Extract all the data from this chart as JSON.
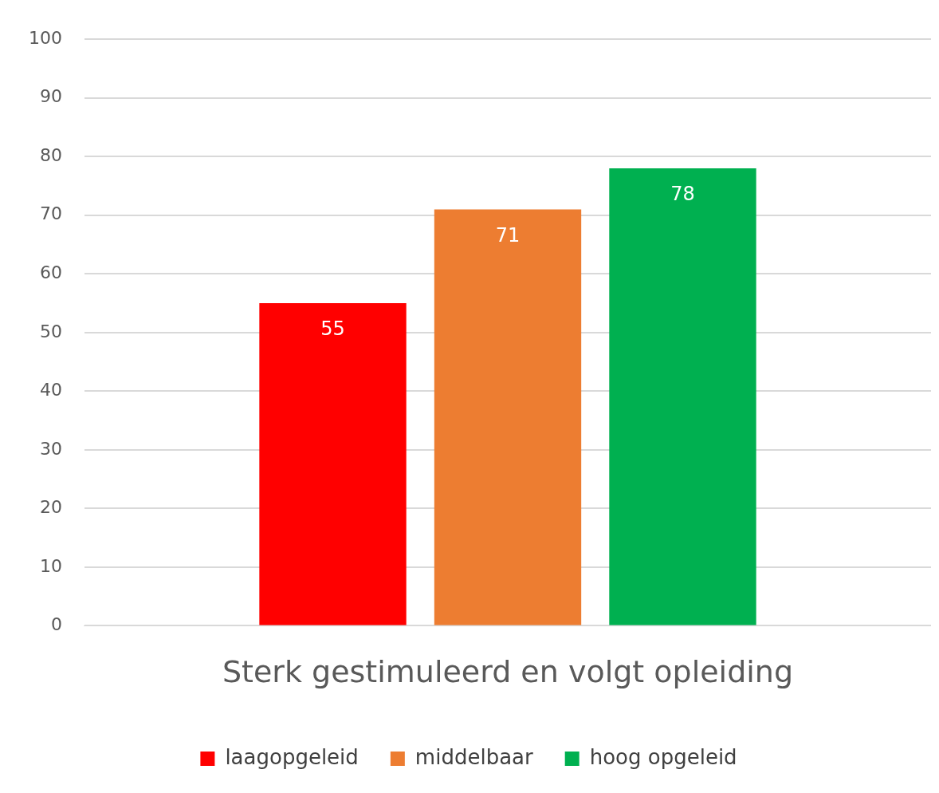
{
  "chart_data": {
    "type": "bar",
    "categories": [
      "Sterk gestimuleerd en volgt opleiding"
    ],
    "series": [
      {
        "name": "laagopgeleid",
        "color": "#ff0000",
        "values": [
          55
        ]
      },
      {
        "name": "middelbaar",
        "color": "#ed7d31",
        "values": [
          71
        ]
      },
      {
        "name": "hoog opgeleid",
        "color": "#00b050",
        "values": [
          78
        ]
      }
    ],
    "ylim": [
      0,
      100
    ],
    "yticks": [
      0,
      10,
      20,
      30,
      40,
      50,
      60,
      70,
      80,
      90,
      100
    ],
    "grid": "y",
    "legend": "bottom",
    "data_labels": true
  }
}
